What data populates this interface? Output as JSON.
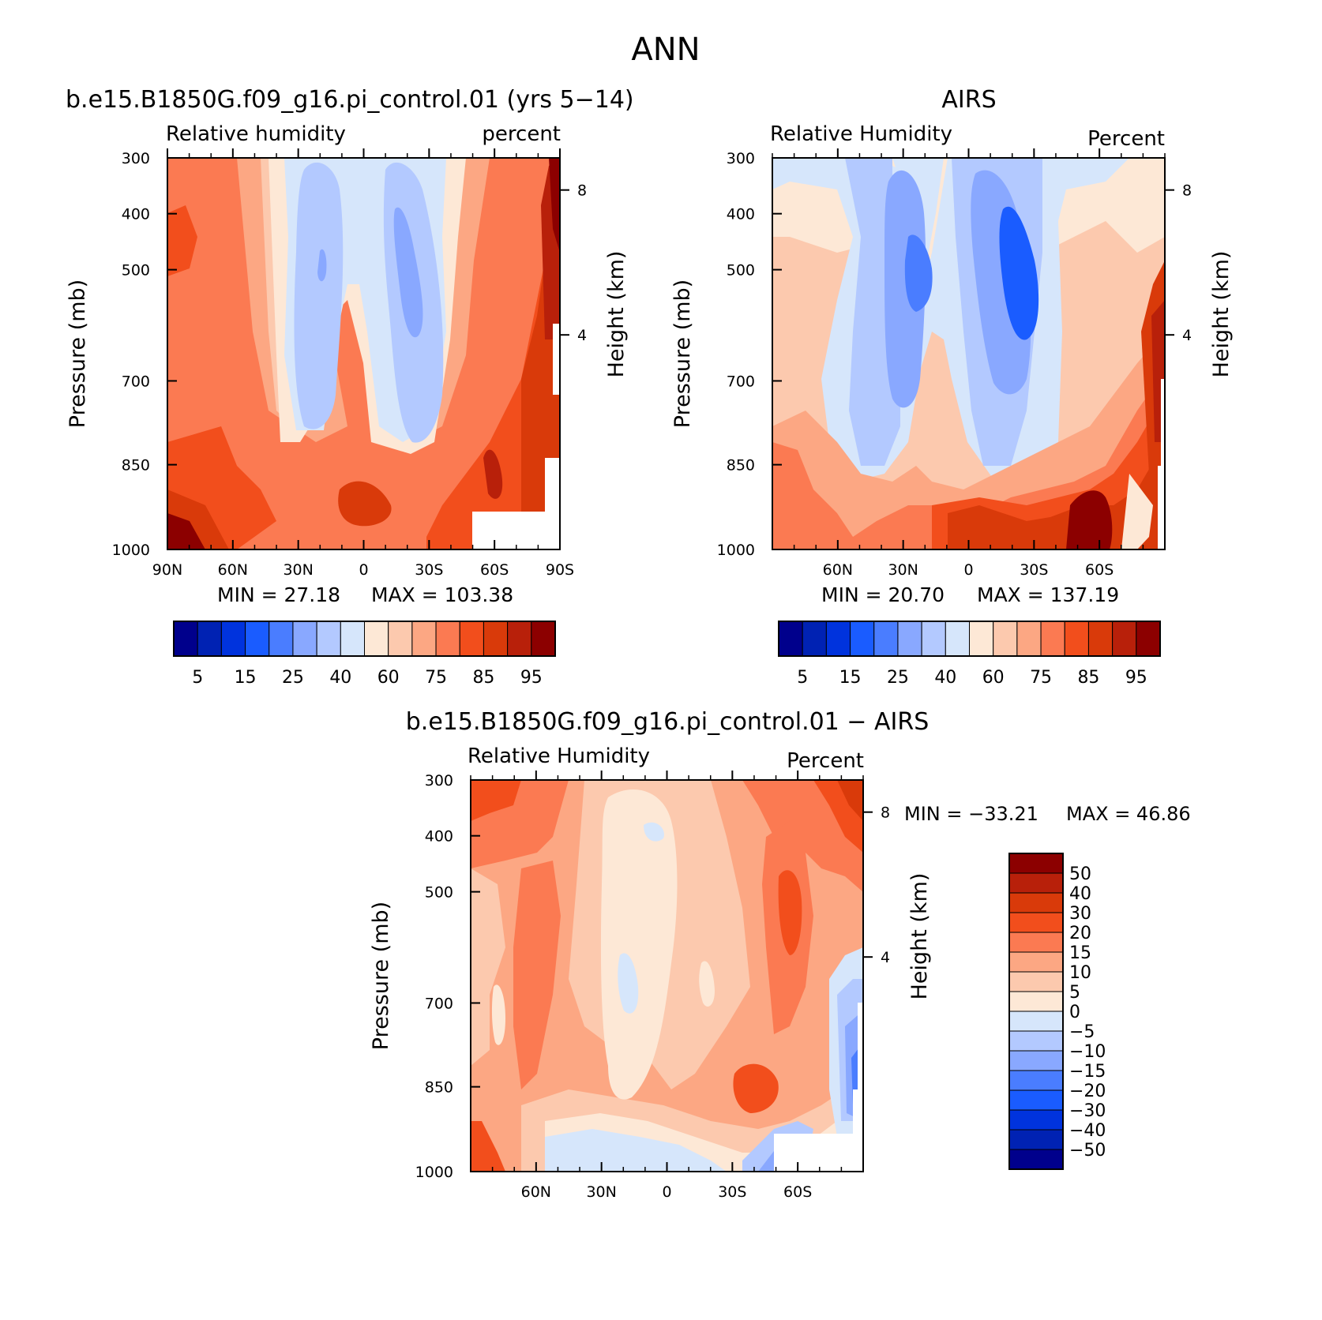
{
  "title": "ANN",
  "chart_data": [
    {
      "type": "heatmap",
      "title": "b.e15.B1850G.f09_g16.pi_control.01 (yrs 5−14)",
      "left_label": "Relative humidity",
      "right_label": "percent",
      "ylabel": "Pressure (mb)",
      "ylabel_right": "Height (km)",
      "x_ticks": [
        "90N",
        "60N",
        "30N",
        "0",
        "30S",
        "60S",
        "90S"
      ],
      "y_ticks": [
        "300",
        "400",
        "500",
        "700",
        "850",
        "1000"
      ],
      "height_ticks": [
        "8",
        "4"
      ],
      "min_text": "MIN =   27.18",
      "max_text": "MAX = 103.38",
      "colorbar_labels": [
        "5",
        "15",
        "25",
        "40",
        "60",
        "75",
        "85",
        "95"
      ],
      "colors": [
        "#00008c",
        "#0022b3",
        "#0033dd",
        "#1a5cff",
        "#4a7dff",
        "#89a8ff",
        "#b3c9ff",
        "#d6e6fb",
        "#fde8d6",
        "#fcc9ae",
        "#fca783",
        "#fb7a52",
        "#f24e1c",
        "#d93a0a",
        "#b8200a",
        "#8c0000"
      ],
      "grid": "none",
      "data_description": "Annual mean zonal-mean relative humidity (%) vs latitude and pressure; moist (>85%) near surface and high latitudes, dry (~30-40%) in subtropical mid-troposphere"
    },
    {
      "type": "heatmap",
      "title": "AIRS",
      "left_label": "Relative Humidity",
      "right_label": "Percent",
      "ylabel": "Pressure (mb)",
      "ylabel_right": "Height (km)",
      "x_ticks": [
        "60N",
        "30N",
        "0",
        "30S",
        "60S"
      ],
      "y_ticks": [
        "300",
        "400",
        "500",
        "700",
        "850",
        "1000"
      ],
      "height_ticks": [
        "8",
        "4"
      ],
      "min_text": "MIN =   20.70",
      "max_text": "MAX = 137.19",
      "colorbar_labels": [
        "5",
        "15",
        "25",
        "40",
        "60",
        "75",
        "85",
        "95"
      ],
      "colors": [
        "#00008c",
        "#0022b3",
        "#0033dd",
        "#1a5cff",
        "#4a7dff",
        "#89a8ff",
        "#b3c9ff",
        "#d6e6fb",
        "#fde8d6",
        "#fcc9ae",
        "#fca783",
        "#fb7a52",
        "#f24e1c",
        "#d93a0a",
        "#b8200a",
        "#8c0000"
      ],
      "grid": "none"
    },
    {
      "type": "heatmap",
      "title": "b.e15.B1850G.f09_g16.pi_control.01 − AIRS",
      "left_label": "Relative Humidity",
      "right_label": "Percent",
      "ylabel": "Pressure (mb)",
      "ylabel_right": "Height (km)",
      "x_ticks": [
        "60N",
        "30N",
        "0",
        "30S",
        "60S"
      ],
      "y_ticks": [
        "300",
        "400",
        "500",
        "700",
        "850",
        "1000"
      ],
      "height_ticks": [
        "8",
        "4"
      ],
      "min_text": "MIN = −33.21",
      "max_text": "MAX =   46.86",
      "colorbar_labels": [
        "50",
        "40",
        "30",
        "20",
        "15",
        "10",
        "5",
        "0",
        "−5",
        "−10",
        "−15",
        "−20",
        "−30",
        "−40",
        "−50"
      ],
      "colors": [
        "#8c0000",
        "#b8200a",
        "#d93a0a",
        "#f24e1c",
        "#fb7a52",
        "#fca783",
        "#fcc9ae",
        "#fde8d6",
        "#d6e6fb",
        "#b3c9ff",
        "#89a8ff",
        "#4a7dff",
        "#1a5cff",
        "#0033dd",
        "#0022b3",
        "#00008c"
      ],
      "grid": "none"
    }
  ]
}
